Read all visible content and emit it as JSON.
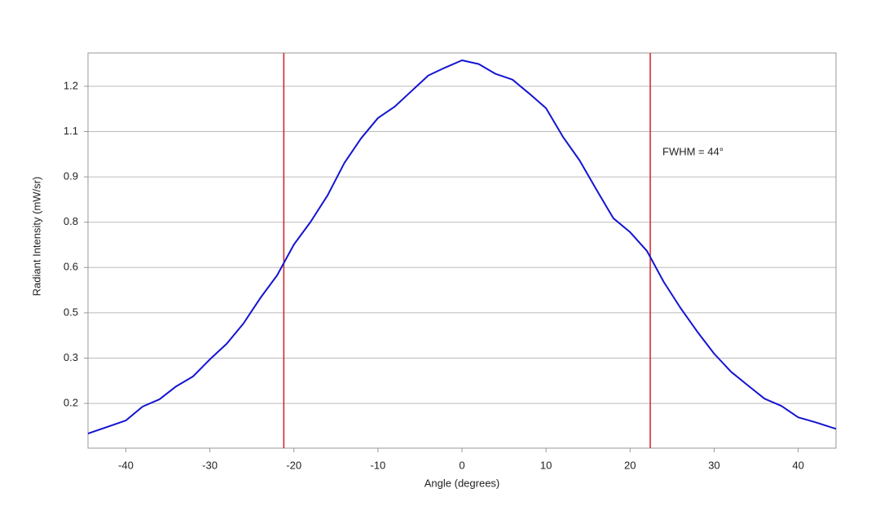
{
  "chart_data": {
    "type": "line",
    "x_label": "Angle (degrees)",
    "y_label": "Radiant Intensity (mW/sr)",
    "annotation": "FWHM = 44°",
    "x": [
      -44.5,
      -40,
      -38,
      -36,
      -34,
      -32,
      -30,
      -28,
      -26,
      -24,
      -22,
      -20,
      -18,
      -16,
      -14,
      -12,
      -10,
      -8,
      -6,
      -4,
      -2,
      0,
      2,
      4,
      6,
      8,
      10,
      12,
      14,
      16,
      18,
      20,
      22,
      24,
      26,
      28,
      30,
      32,
      34,
      36,
      38,
      40,
      42,
      44.5
    ],
    "series": [
      {
        "color": "#1414d2",
        "values": [
          0.105,
          0.146,
          0.19,
          0.213,
          0.254,
          0.285,
          0.339,
          0.388,
          0.452,
          0.532,
          0.604,
          0.701,
          0.773,
          0.856,
          0.958,
          1.036,
          1.1,
          1.136,
          1.185,
          1.234,
          1.259,
          1.282,
          1.27,
          1.239,
          1.221,
          1.177,
          1.131,
          1.041,
          0.966,
          0.874,
          0.784,
          0.74,
          0.681,
          0.583,
          0.501,
          0.426,
          0.357,
          0.3,
          0.257,
          0.215,
          0.192,
          0.156,
          0.141,
          0.12
        ]
      }
    ],
    "vlines": [
      -21.2,
      22.4
    ],
    "vline_color": "#d42020",
    "xlim": [
      -44.5,
      44.5
    ],
    "xticks": [
      -40,
      -30,
      -20,
      -10,
      0,
      10,
      20,
      30,
      40
    ],
    "ylim": [
      0.059,
      1.305
    ],
    "yticks": [
      {
        "value": 0.2,
        "label": "0.2"
      },
      {
        "value": 0.3429,
        "label": "0.3"
      },
      {
        "value": 0.4857,
        "label": "0.5"
      },
      {
        "value": 0.6286,
        "label": "0.6"
      },
      {
        "value": 0.7714,
        "label": "0.8"
      },
      {
        "value": 0.9143,
        "label": "0.9"
      },
      {
        "value": 1.0571,
        "label": "1.1"
      },
      {
        "value": 1.2,
        "label": "1.2"
      }
    ],
    "grid": true
  }
}
